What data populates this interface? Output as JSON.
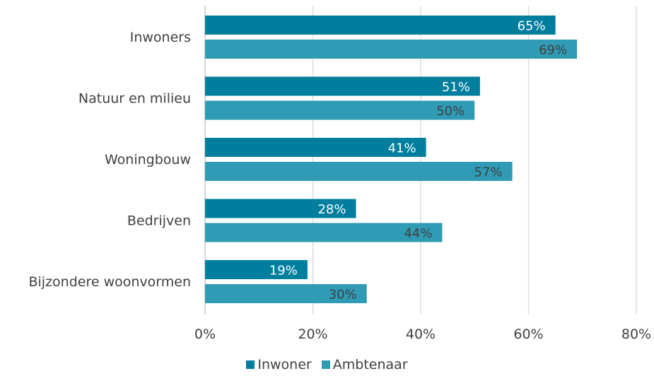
{
  "chart_data": {
    "type": "bar",
    "orientation": "horizontal",
    "categories": [
      "Inwoners",
      "Natuur en milieu",
      "Woningbouw",
      "Bedrijven",
      "Bijzondere woonvormen"
    ],
    "series": [
      {
        "name": "Inwoner",
        "values": [
          65,
          51,
          41,
          28,
          19
        ],
        "labels": [
          "65%",
          "51%",
          "41%",
          "28%",
          "19%"
        ],
        "color": "#007e9e",
        "label_color": "#ffffff"
      },
      {
        "name": "Ambtenaar",
        "values": [
          69,
          50,
          57,
          44,
          30
        ],
        "labels": [
          "69%",
          "50%",
          "57%",
          "44%",
          "30%"
        ],
        "color": "#2f9bb5",
        "label_color": "#404040"
      }
    ],
    "xlim": [
      0,
      80
    ],
    "xticks": [
      0,
      20,
      40,
      60,
      80
    ],
    "xtick_labels": [
      "0%",
      "20%",
      "40%",
      "60%",
      "80%"
    ],
    "grid": true,
    "legend_position": "bottom"
  }
}
